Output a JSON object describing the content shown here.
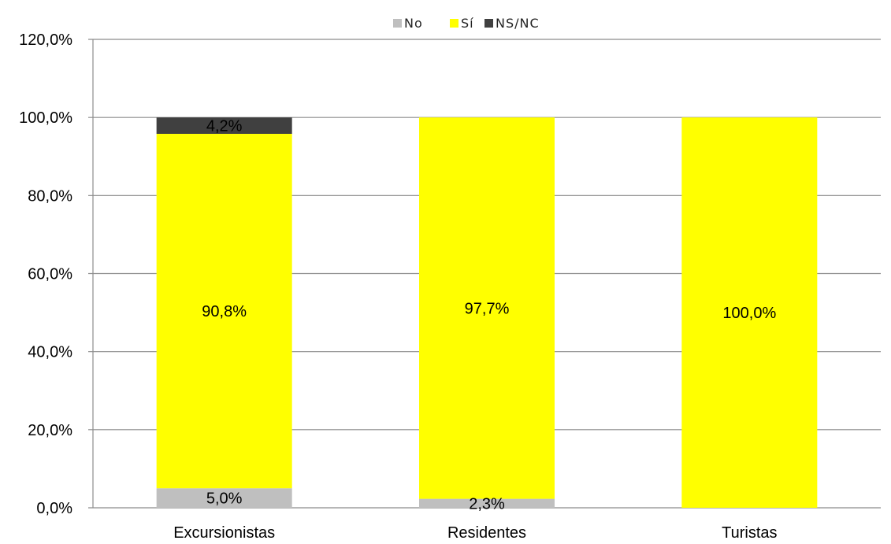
{
  "chart_data": {
    "type": "bar",
    "stacked": true,
    "categories": [
      "Excursionistas",
      "Residentes",
      "Turistas"
    ],
    "series": [
      {
        "name": "No",
        "color": "#bfbfbf",
        "values": [
          5.0,
          2.3,
          0.0
        ]
      },
      {
        "name": "Sí",
        "color": "#ffff00",
        "values": [
          90.8,
          97.7,
          100.0
        ]
      },
      {
        "name": "NS/NC",
        "color": "#404040",
        "values": [
          4.2,
          0.0,
          0.0
        ]
      }
    ],
    "data_labels": [
      [
        "5,0%",
        "2,3%",
        ""
      ],
      [
        "90,8%",
        "97,7%",
        "100,0%"
      ],
      [
        "4,2%",
        "",
        ""
      ]
    ],
    "y_ticks": [
      "0,0%",
      "20,0%",
      "40,0%",
      "60,0%",
      "80,0%",
      "100,0%",
      "120,0%"
    ],
    "ylim": [
      0,
      120
    ],
    "grid": true,
    "legend_position": "top-center",
    "title": "",
    "xlabel": "",
    "ylabel": ""
  }
}
